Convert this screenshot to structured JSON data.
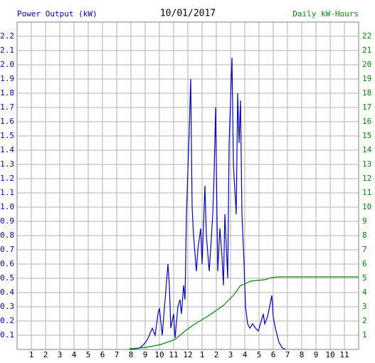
{
  "chart_data": {
    "type": "line",
    "title": "10/01/2017",
    "y_label": "Power Output (kW)",
    "y2_label": "Daily kW-Hours",
    "xlim": [
      0,
      24
    ],
    "xticks": [
      1,
      2,
      3,
      4,
      5,
      6,
      7,
      8,
      9,
      10,
      11,
      12,
      {
        "value": 13,
        "label": "1"
      },
      {
        "value": 14,
        "label": "2"
      },
      {
        "value": 15,
        "label": "3"
      },
      {
        "value": 16,
        "label": "4"
      },
      {
        "value": 17,
        "label": "5"
      },
      {
        "value": 18,
        "label": "6"
      },
      {
        "value": 19,
        "label": "7"
      },
      {
        "value": 20,
        "label": "8"
      },
      {
        "value": 21,
        "label": "9"
      },
      {
        "value": 22,
        "label": "10"
      },
      {
        "value": 23,
        "label": "11"
      }
    ],
    "ylim": [
      0,
      2.3
    ],
    "yticks": [
      0.1,
      0.2,
      0.3,
      0.4,
      0.5,
      0.6,
      0.7,
      0.8,
      0.9,
      {
        "value": 1,
        "label": "1.0"
      },
      1.1,
      1.2,
      1.3,
      1.4,
      1.5,
      1.6,
      1.7,
      1.8,
      1.9,
      {
        "value": 2,
        "label": "2.0"
      },
      2.1,
      2.2
    ],
    "y2lim": [
      0,
      23
    ],
    "y2ticks": [
      1,
      2,
      3,
      4,
      5,
      6,
      7,
      8,
      9,
      10,
      11,
      12,
      13,
      14,
      15,
      16,
      17,
      18,
      19,
      20,
      21,
      22
    ],
    "grid": true,
    "series": [
      {
        "name": "Power Output",
        "color": "#0000cc",
        "x": [
          7.9,
          8.6,
          8.85,
          9.1,
          9.25,
          9.5,
          9.7,
          9.9,
          10.0,
          10.2,
          10.4,
          10.6,
          10.7,
          10.8,
          11.0,
          11.1,
          11.3,
          11.45,
          11.55,
          11.7,
          11.8,
          11.9,
          12.1,
          12.2,
          12.3,
          12.4,
          12.6,
          12.7,
          12.9,
          13.0,
          13.2,
          13.3,
          13.5,
          13.6,
          13.75,
          13.85,
          13.95,
          14.1,
          14.25,
          14.4,
          14.5,
          14.6,
          14.8,
          14.9,
          15.1,
          15.2,
          15.4,
          15.5,
          15.6,
          15.7,
          15.8,
          15.95,
          16.05,
          16.2,
          16.35,
          16.55,
          16.75,
          16.95,
          17.1,
          17.3,
          17.4,
          17.6,
          17.7,
          17.9,
          18.0,
          18.15,
          18.4,
          18.65,
          18.9
        ],
        "values": [
          0.0,
          0.01,
          0.03,
          0.06,
          0.09,
          0.15,
          0.1,
          0.25,
          0.29,
          0.1,
          0.35,
          0.6,
          0.45,
          0.15,
          0.25,
          0.08,
          0.3,
          0.35,
          0.25,
          0.45,
          0.35,
          0.95,
          1.55,
          1.9,
          1.0,
          0.8,
          0.55,
          0.7,
          0.85,
          0.6,
          1.15,
          0.8,
          0.55,
          0.7,
          0.95,
          1.25,
          1.7,
          0.55,
          0.85,
          0.65,
          0.45,
          0.95,
          0.5,
          1.45,
          2.05,
          1.3,
          0.95,
          1.8,
          1.45,
          1.75,
          0.95,
          0.6,
          0.3,
          0.18,
          0.15,
          0.18,
          0.15,
          0.13,
          0.18,
          0.25,
          0.18,
          0.23,
          0.28,
          0.38,
          0.23,
          0.15,
          0.05,
          0.01,
          0.0
        ]
      },
      {
        "name": "Daily kW-Hours",
        "color": "#008800",
        "axis": "y2",
        "x": [
          7.9,
          9.1,
          10.1,
          11.1,
          11.8,
          12.5,
          13.5,
          14.5,
          15.2,
          15.7,
          16.0,
          16.4,
          17.4,
          17.9,
          18.4,
          24
        ],
        "values": [
          0.05,
          0.15,
          0.35,
          0.7,
          1.3,
          1.8,
          2.4,
          3.1,
          3.8,
          4.5,
          4.6,
          4.8,
          4.9,
          5.05,
          5.1,
          5.1
        ]
      }
    ]
  }
}
